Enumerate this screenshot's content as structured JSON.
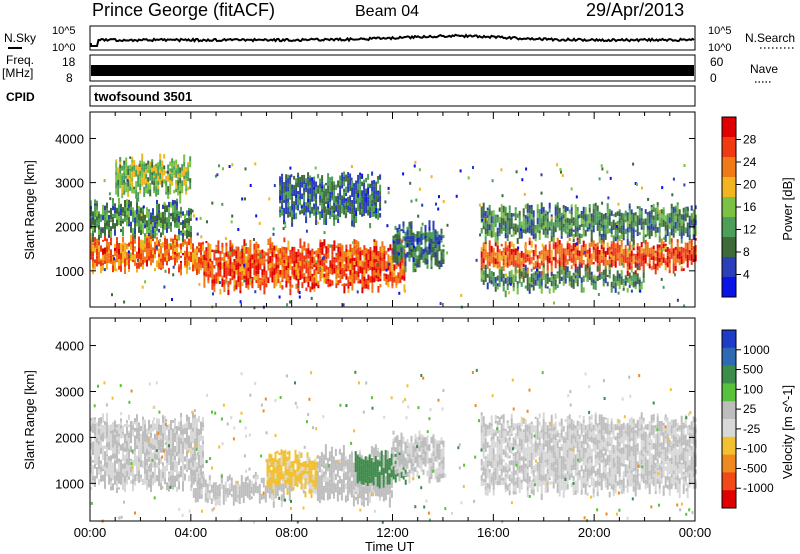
{
  "header": {
    "station": "Prince George (fitACF)",
    "beam": "Beam 04",
    "date": "29/Apr/2013"
  },
  "strips": {
    "nsky_label": "N.Sky",
    "nsky_top": "10^5",
    "nsky_bottom": "10^0",
    "nsearch_label": "N.Search",
    "nsearch_top": "10^5",
    "nsearch_bottom": "10^0",
    "freq_label": "Freq.",
    "freq_unit": "[MHz]",
    "freq_top": "18",
    "freq_bottom": "8",
    "nave_label": "Nave",
    "nave_top": "60",
    "nave_bottom": "0",
    "cpid_label": "CPID",
    "cpid_value": "twofsound 3501"
  },
  "x_axis": {
    "label": "Time UT",
    "ticks": [
      "00:00",
      "04:00",
      "08:00",
      "12:00",
      "16:00",
      "20:00",
      "00:00"
    ]
  },
  "colors": {
    "power_scale": [
      "#0a14e6",
      "#2a3fb8",
      "#3f6a3a",
      "#4c9e58",
      "#7bc143",
      "#f0b520",
      "#f07a18",
      "#f03a14",
      "#e00000"
    ],
    "velocity_scale": [
      "#1e3cc8",
      "#2e6ab4",
      "#3c8c4a",
      "#58c23c",
      "#bdbdbd",
      "#d8d8d8",
      "#f2c030",
      "#f08a20",
      "#f04a18",
      "#e00000"
    ]
  },
  "chart_data": [
    {
      "type": "heatmap",
      "title": "Power",
      "ylabel": "Slant Range [km]",
      "xlabel": "",
      "xlim": [
        "00:00",
        "24:00"
      ],
      "ylim": [
        180,
        4600
      ],
      "y_ticks": [
        1000,
        2000,
        3000,
        4000
      ],
      "colorbar": {
        "label": "Power [dB]",
        "ticks": [
          "4",
          "8",
          "12",
          "16",
          "20",
          "24",
          "28"
        ],
        "range": [
          0,
          30
        ]
      },
      "regions": [
        {
          "t": [
            0.0,
            4.5
          ],
          "range": [
            1100,
            1700
          ],
          "value": 22
        },
        {
          "t": [
            0.0,
            4.0
          ],
          "range": [
            1900,
            2500
          ],
          "value": 10
        },
        {
          "t": [
            1.0,
            4.0
          ],
          "range": [
            2800,
            3500
          ],
          "value": 14
        },
        {
          "t": [
            4.5,
            12.5
          ],
          "range": [
            700,
            1600
          ],
          "value": 24
        },
        {
          "t": [
            7.5,
            11.5
          ],
          "range": [
            2200,
            3100
          ],
          "value": 8
        },
        {
          "t": [
            12.0,
            14.0
          ],
          "range": [
            1200,
            2000
          ],
          "value": 8
        },
        {
          "t": [
            15.5,
            24.0
          ],
          "range": [
            1100,
            1600
          ],
          "value": 24
        },
        {
          "t": [
            15.5,
            24.0
          ],
          "range": [
            1800,
            2400
          ],
          "value": 10
        },
        {
          "t": [
            15.5,
            22.0
          ],
          "range": [
            700,
            1000
          ],
          "value": 10
        }
      ]
    },
    {
      "type": "heatmap",
      "title": "Velocity",
      "ylabel": "Slant Range [km]",
      "xlabel": "Time UT",
      "xlim": [
        "00:00",
        "24:00"
      ],
      "ylim": [
        180,
        4600
      ],
      "y_ticks": [
        1000,
        2000,
        3000,
        4000
      ],
      "colorbar": {
        "label": "Velocity [m s^-1]",
        "ticks": [
          "1000",
          "500",
          "100",
          "25",
          "-25",
          "-100",
          "-500",
          "-1000"
        ],
        "range": [
          -1200,
          1200
        ]
      },
      "regions": [
        {
          "t": [
            0.0,
            4.5
          ],
          "range": [
            1000,
            2400
          ],
          "value": 0
        },
        {
          "t": [
            4.0,
            8.0
          ],
          "range": [
            700,
            1100
          ],
          "value": 80
        },
        {
          "t": [
            7.0,
            9.0
          ],
          "range": [
            900,
            1600
          ],
          "value": -300
        },
        {
          "t": [
            9.0,
            12.0
          ],
          "range": [
            700,
            1700
          ],
          "value": 90
        },
        {
          "t": [
            10.5,
            12.5
          ],
          "range": [
            1100,
            1600
          ],
          "value": 600
        },
        {
          "t": [
            12.0,
            14.0
          ],
          "range": [
            1200,
            2000
          ],
          "value": 0
        },
        {
          "t": [
            15.5,
            24.0
          ],
          "range": [
            900,
            2400
          ],
          "value": 0
        }
      ]
    }
  ]
}
